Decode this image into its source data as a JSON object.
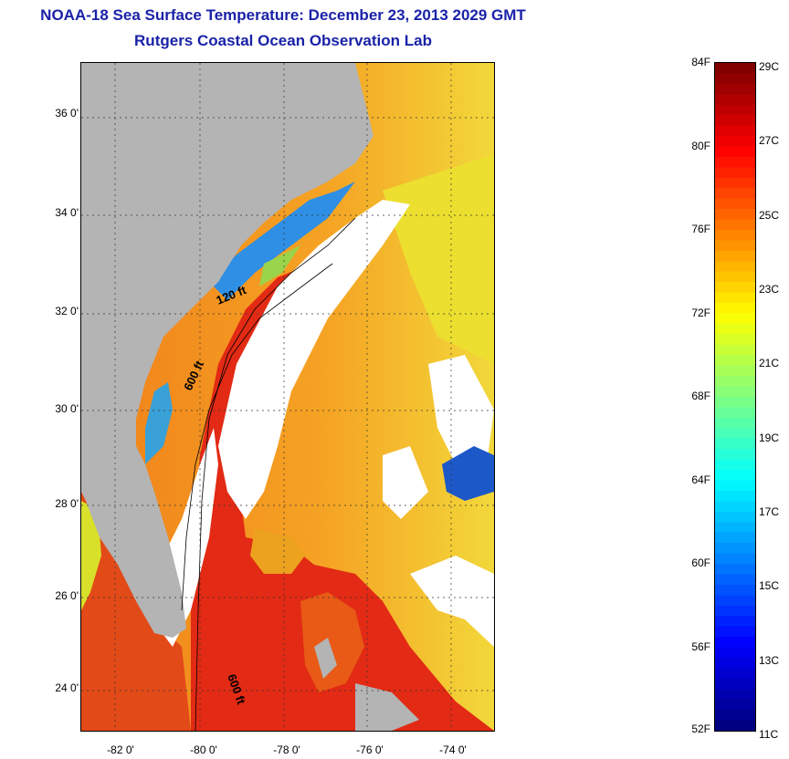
{
  "title_line1": "NOAA-18 Sea Surface Temperature:  December 23, 2013 2029 GMT",
  "title_line2": "Rutgers Coastal Ocean Observation Lab",
  "map": {
    "lat_ticks": [
      "36 0'",
      "34 0'",
      "32 0'",
      "30 0'",
      "28 0'",
      "26 0'",
      "24 0'"
    ],
    "lon_ticks": [
      "-82 0'",
      "-80 0'",
      "-78 0'",
      "-76 0'",
      "-74 0'"
    ],
    "contour_labels": [
      "120 ft",
      "600 ft",
      "600 ft"
    ],
    "colors": {
      "land": "#b4b4b4",
      "cloud": "#ffffff",
      "gulf_stream": "#e52314",
      "offshore": "#ef8a1e",
      "shelf_cold": "#1f7fe0",
      "nearshore": "#e8e61c"
    }
  },
  "colorbar": {
    "fahrenheit": [
      "84F",
      "80F",
      "76F",
      "72F",
      "68F",
      "64F",
      "60F",
      "56F",
      "52F"
    ],
    "celsius": [
      "29C",
      "27C",
      "25C",
      "23C",
      "21C",
      "19C",
      "17C",
      "15C",
      "13C",
      "11C"
    ],
    "range_c": [
      11,
      29
    ],
    "range_f": [
      52,
      84
    ],
    "scale": "jet"
  }
}
